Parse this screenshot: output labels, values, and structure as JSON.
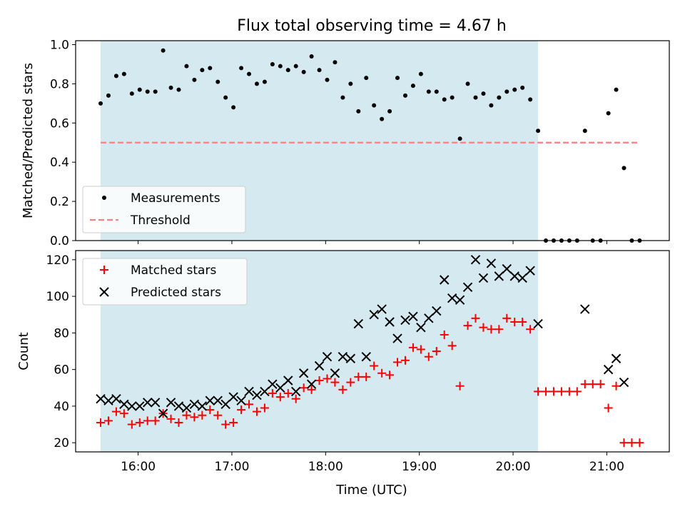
{
  "chart_data": [
    {
      "type": "scatter",
      "title": "Flux total observing time = 4.67 h",
      "xlabel": "",
      "ylabel": "Matched/Predicted stars",
      "xlim": [
        "15:20",
        "21:40"
      ],
      "ylim": [
        0,
        1.02
      ],
      "xticks": [
        "16:00",
        "17:00",
        "18:00",
        "19:00",
        "20:00",
        "21:00"
      ],
      "yticks": [
        0.0,
        0.2,
        0.4,
        0.6,
        0.8,
        1.0
      ],
      "ytick_labels": [
        "0.0",
        "0.2",
        "0.4",
        "0.6",
        "0.8",
        "1.0"
      ],
      "shaded_interval": [
        "15:36",
        "20:16"
      ],
      "shade_color": "#d4eaf0",
      "legend_position": "lower left",
      "series": [
        {
          "name": "Measurements",
          "marker": "dot",
          "color": "#000000",
          "points": [
            [
              "15:36",
              0.7
            ],
            [
              "15:41",
              0.74
            ],
            [
              "15:46",
              0.84
            ],
            [
              "15:51",
              0.85
            ],
            [
              "15:56",
              0.75
            ],
            [
              "16:01",
              0.77
            ],
            [
              "16:06",
              0.76
            ],
            [
              "16:11",
              0.76
            ],
            [
              "16:16",
              0.97
            ],
            [
              "16:21",
              0.78
            ],
            [
              "16:26",
              0.77
            ],
            [
              "16:31",
              0.89
            ],
            [
              "16:36",
              0.82
            ],
            [
              "16:41",
              0.87
            ],
            [
              "16:46",
              0.88
            ],
            [
              "16:51",
              0.81
            ],
            [
              "16:56",
              0.73
            ],
            [
              "17:01",
              0.68
            ],
            [
              "17:06",
              0.88
            ],
            [
              "17:11",
              0.85
            ],
            [
              "17:16",
              0.8
            ],
            [
              "17:21",
              0.81
            ],
            [
              "17:26",
              0.9
            ],
            [
              "17:31",
              0.89
            ],
            [
              "17:36",
              0.87
            ],
            [
              "17:41",
              0.89
            ],
            [
              "17:46",
              0.86
            ],
            [
              "17:51",
              0.94
            ],
            [
              "17:56",
              0.87
            ],
            [
              "18:01",
              0.82
            ],
            [
              "18:06",
              0.91
            ],
            [
              "18:11",
              0.73
            ],
            [
              "18:16",
              0.8
            ],
            [
              "18:21",
              0.66
            ],
            [
              "18:26",
              0.83
            ],
            [
              "18:31",
              0.69
            ],
            [
              "18:36",
              0.62
            ],
            [
              "18:41",
              0.66
            ],
            [
              "18:46",
              0.83
            ],
            [
              "18:51",
              0.74
            ],
            [
              "18:56",
              0.79
            ],
            [
              "19:01",
              0.85
            ],
            [
              "19:06",
              0.76
            ],
            [
              "19:11",
              0.76
            ],
            [
              "19:16",
              0.72
            ],
            [
              "19:21",
              0.73
            ],
            [
              "19:26",
              0.52
            ],
            [
              "19:31",
              0.8
            ],
            [
              "19:36",
              0.73
            ],
            [
              "19:41",
              0.75
            ],
            [
              "19:46",
              0.69
            ],
            [
              "19:51",
              0.73
            ],
            [
              "19:56",
              0.76
            ],
            [
              "20:01",
              0.77
            ],
            [
              "20:06",
              0.78
            ],
            [
              "20:11",
              0.72
            ],
            [
              "20:16",
              0.56
            ],
            [
              "20:21",
              0.0
            ],
            [
              "20:26",
              0.0
            ],
            [
              "20:31",
              0.0
            ],
            [
              "20:36",
              0.0
            ],
            [
              "20:41",
              0.0
            ],
            [
              "20:46",
              0.56
            ],
            [
              "20:51",
              0.0
            ],
            [
              "20:56",
              0.0
            ],
            [
              "21:01",
              0.65
            ],
            [
              "21:06",
              0.77
            ],
            [
              "21:11",
              0.37
            ],
            [
              "21:16",
              0.0
            ],
            [
              "21:21",
              0.0
            ]
          ]
        },
        {
          "name": "Threshold",
          "marker": "dashed-line",
          "color": "#ff7f7f",
          "points": [
            [
              "15:36",
              0.5
            ],
            [
              "21:21",
              0.5
            ]
          ]
        }
      ]
    },
    {
      "type": "scatter",
      "title": "",
      "xlabel": "Time (UTC)",
      "ylabel": "Count",
      "xlim": [
        "15:20",
        "21:40"
      ],
      "ylim": [
        15,
        125
      ],
      "xticks": [
        "16:00",
        "17:00",
        "18:00",
        "19:00",
        "20:00",
        "21:00"
      ],
      "yticks": [
        20,
        40,
        60,
        80,
        100,
        120
      ],
      "ytick_labels": [
        "20",
        "40",
        "60",
        "80",
        "100",
        "120"
      ],
      "shaded_interval": [
        "15:36",
        "20:16"
      ],
      "shade_color": "#d4eaf0",
      "legend_position": "upper left",
      "series": [
        {
          "name": "Matched stars",
          "marker": "plus",
          "color": "#ff0000",
          "points": [
            [
              "15:36",
              31
            ],
            [
              "15:41",
              32
            ],
            [
              "15:46",
              37
            ],
            [
              "15:51",
              36
            ],
            [
              "15:56",
              30
            ],
            [
              "16:01",
              31
            ],
            [
              "16:06",
              32
            ],
            [
              "16:11",
              32
            ],
            [
              "16:16",
              36
            ],
            [
              "16:21",
              33
            ],
            [
              "16:26",
              31
            ],
            [
              "16:31",
              35
            ],
            [
              "16:36",
              34
            ],
            [
              "16:41",
              35
            ],
            [
              "16:46",
              38
            ],
            [
              "16:51",
              35
            ],
            [
              "16:56",
              30
            ],
            [
              "17:01",
              31
            ],
            [
              "17:06",
              38
            ],
            [
              "17:11",
              41
            ],
            [
              "17:16",
              37
            ],
            [
              "17:21",
              39
            ],
            [
              "17:26",
              47
            ],
            [
              "17:31",
              45
            ],
            [
              "17:36",
              47
            ],
            [
              "17:41",
              44
            ],
            [
              "17:46",
              50
            ],
            [
              "17:51",
              49
            ],
            [
              "17:56",
              54
            ],
            [
              "18:01",
              55
            ],
            [
              "18:06",
              53
            ],
            [
              "18:11",
              49
            ],
            [
              "18:16",
              53
            ],
            [
              "18:21",
              56
            ],
            [
              "18:26",
              56
            ],
            [
              "18:31",
              62
            ],
            [
              "18:36",
              58
            ],
            [
              "18:41",
              57
            ],
            [
              "18:46",
              64
            ],
            [
              "18:51",
              65
            ],
            [
              "18:56",
              72
            ],
            [
              "19:01",
              71
            ],
            [
              "19:06",
              67
            ],
            [
              "19:11",
              70
            ],
            [
              "19:16",
              79
            ],
            [
              "19:21",
              73
            ],
            [
              "19:26",
              51
            ],
            [
              "19:31",
              84
            ],
            [
              "19:36",
              88
            ],
            [
              "19:41",
              83
            ],
            [
              "19:46",
              82
            ],
            [
              "19:51",
              82
            ],
            [
              "19:56",
              88
            ],
            [
              "20:01",
              86
            ],
            [
              "20:06",
              86
            ],
            [
              "20:11",
              82
            ],
            [
              "20:16",
              48
            ],
            [
              "20:21",
              48
            ],
            [
              "20:26",
              48
            ],
            [
              "20:31",
              48
            ],
            [
              "20:36",
              48
            ],
            [
              "20:41",
              48
            ],
            [
              "20:46",
              52
            ],
            [
              "20:51",
              52
            ],
            [
              "20:56",
              52
            ],
            [
              "21:01",
              39
            ],
            [
              "21:06",
              51
            ],
            [
              "21:11",
              20
            ],
            [
              "21:16",
              20
            ],
            [
              "21:21",
              20
            ]
          ]
        },
        {
          "name": "Predicted stars",
          "marker": "x",
          "color": "#000000",
          "points": [
            [
              "15:36",
              44
            ],
            [
              "15:41",
              43
            ],
            [
              "15:46",
              44
            ],
            [
              "15:51",
              41
            ],
            [
              "15:56",
              40
            ],
            [
              "16:01",
              40
            ],
            [
              "16:06",
              42
            ],
            [
              "16:11",
              42
            ],
            [
              "16:16",
              36
            ],
            [
              "16:21",
              42
            ],
            [
              "16:26",
              40
            ],
            [
              "16:31",
              39
            ],
            [
              "16:36",
              41
            ],
            [
              "16:41",
              40
            ],
            [
              "16:46",
              43
            ],
            [
              "16:51",
              43
            ],
            [
              "16:56",
              41
            ],
            [
              "17:01",
              45
            ],
            [
              "17:06",
              43
            ],
            [
              "17:11",
              48
            ],
            [
              "17:16",
              46
            ],
            [
              "17:21",
              48
            ],
            [
              "17:26",
              52
            ],
            [
              "17:31",
              50
            ],
            [
              "17:36",
              54
            ],
            [
              "17:41",
              48
            ],
            [
              "17:46",
              58
            ],
            [
              "17:51",
              52
            ],
            [
              "17:56",
              62
            ],
            [
              "18:01",
              67
            ],
            [
              "18:06",
              58
            ],
            [
              "18:11",
              67
            ],
            [
              "18:16",
              66
            ],
            [
              "18:21",
              85
            ],
            [
              "18:26",
              67
            ],
            [
              "18:31",
              90
            ],
            [
              "18:36",
              93
            ],
            [
              "18:41",
              86
            ],
            [
              "18:46",
              77
            ],
            [
              "18:51",
              87
            ],
            [
              "18:56",
              89
            ],
            [
              "19:01",
              83
            ],
            [
              "19:06",
              88
            ],
            [
              "19:11",
              92
            ],
            [
              "19:16",
              109
            ],
            [
              "19:21",
              99
            ],
            [
              "19:26",
              98
            ],
            [
              "19:31",
              105
            ],
            [
              "19:36",
              120
            ],
            [
              "19:41",
              110
            ],
            [
              "19:46",
              118
            ],
            [
              "19:51",
              111
            ],
            [
              "19:56",
              115
            ],
            [
              "20:01",
              111
            ],
            [
              "20:06",
              110
            ],
            [
              "20:11",
              114
            ],
            [
              "20:16",
              85
            ],
            [
              "20:46",
              93
            ],
            [
              "21:01",
              60
            ],
            [
              "21:06",
              66
            ],
            [
              "21:11",
              53
            ]
          ]
        }
      ]
    }
  ]
}
